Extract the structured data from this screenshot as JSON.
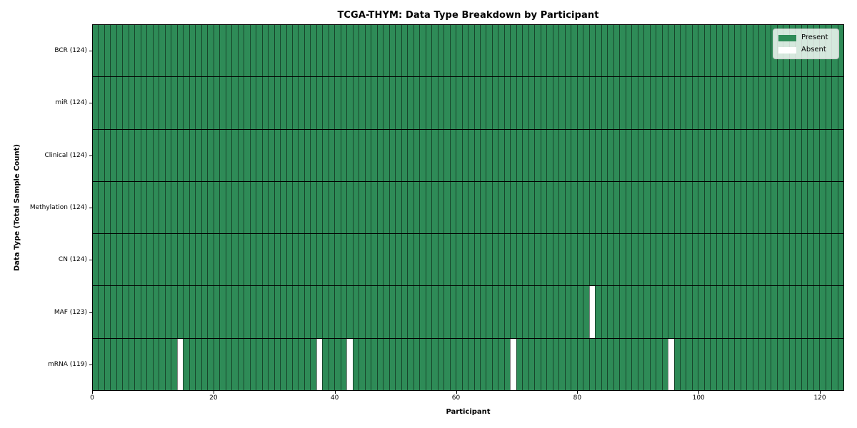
{
  "title": "TCGA-THYM: Data Type Breakdown by Participant",
  "axes": {
    "xlabel": "Participant",
    "ylabel": "Data Type (Total Sample Count)"
  },
  "legend": {
    "present_label": "Present",
    "absent_label": "Absent"
  },
  "colors": {
    "present": "#2e8b57",
    "absent": "#ffffff",
    "cell_edge": "rgba(0,0,0,0.5)",
    "row_separator": "#000000",
    "plot_border": "#000000"
  },
  "chart_data": {
    "type": "heatmap",
    "title": "TCGA-THYM: Data Type Breakdown by Participant",
    "xlabel": "Participant",
    "ylabel": "Data Type (Total Sample Count)",
    "n_participants": 124,
    "xlim": [
      0,
      124
    ],
    "x_ticks": [
      0,
      20,
      40,
      60,
      80,
      100,
      120
    ],
    "grid": false,
    "legend_position": "upper right",
    "legend_entries": [
      "Present",
      "Absent"
    ],
    "value_encoding": {
      "present": 1,
      "absent": 0
    },
    "rows": [
      {
        "label": "BCR (124)",
        "data_type": "BCR",
        "present_count": 124,
        "absent_participants": []
      },
      {
        "label": "miR (124)",
        "data_type": "miR",
        "present_count": 124,
        "absent_participants": []
      },
      {
        "label": "Clinical (124)",
        "data_type": "Clinical",
        "present_count": 124,
        "absent_participants": []
      },
      {
        "label": "Methylation (124)",
        "data_type": "Methylation",
        "present_count": 124,
        "absent_participants": []
      },
      {
        "label": "CN (124)",
        "data_type": "CN",
        "present_count": 124,
        "absent_participants": []
      },
      {
        "label": "MAF (123)",
        "data_type": "MAF",
        "present_count": 123,
        "absent_participants": [
          82
        ]
      },
      {
        "label": "mRNA (119)",
        "data_type": "mRNA",
        "present_count": 119,
        "absent_participants": [
          14,
          37,
          42,
          69,
          95
        ]
      }
    ]
  }
}
